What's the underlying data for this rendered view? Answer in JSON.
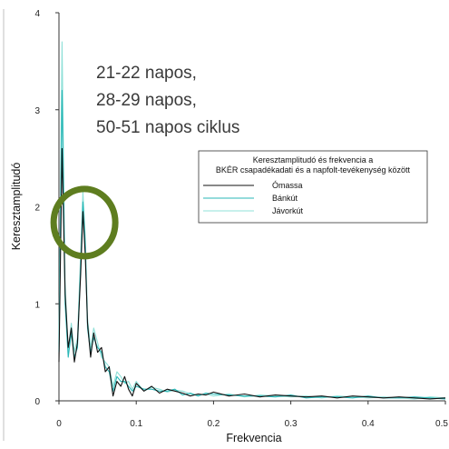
{
  "chart_data": {
    "type": "line",
    "xlabel": "Frekvencia",
    "ylabel": "Keresztamplitudó",
    "xlim": [
      0,
      0.5
    ],
    "ylim": [
      0,
      4
    ],
    "x_ticks": [
      "0",
      "0.1",
      "0.2",
      "0.3",
      "0.4",
      "0.5"
    ],
    "x_tick_values": [
      0,
      0.1,
      0.2,
      0.3,
      0.4,
      0.5
    ],
    "y_ticks": [
      "0",
      "1",
      "2",
      "3",
      "4"
    ],
    "y_tick_values": [
      0,
      1,
      2,
      3,
      4
    ],
    "annotation": [
      "21-22 napos,",
      "28-29 napos,",
      "50-51 napos ciklus"
    ],
    "highlight": {
      "x": 0.033,
      "y": 1.95,
      "color": "#5e7d1f"
    },
    "legend": {
      "title": [
        "Keresztamplitudó és frekvencia a",
        "BKÉR csapadékadati és a napfolt-tevékenység között"
      ],
      "placement": "right"
    },
    "series": [
      {
        "name": "Ómassa",
        "color": "#111111",
        "x": [
          0,
          0.004,
          0.008,
          0.012,
          0.016,
          0.02,
          0.024,
          0.028,
          0.031,
          0.034,
          0.037,
          0.041,
          0.045,
          0.05,
          0.055,
          0.06,
          0.065,
          0.07,
          0.075,
          0.08,
          0.085,
          0.09,
          0.095,
          0.1,
          0.11,
          0.12,
          0.13,
          0.14,
          0.15,
          0.16,
          0.17,
          0.18,
          0.19,
          0.2,
          0.22,
          0.24,
          0.26,
          0.28,
          0.3,
          0.32,
          0.34,
          0.36,
          0.38,
          0.4,
          0.42,
          0.44,
          0.46,
          0.48,
          0.5
        ],
        "values": [
          0.4,
          2.6,
          1.1,
          0.55,
          0.75,
          0.4,
          0.6,
          1.3,
          1.95,
          1.5,
          0.8,
          0.45,
          0.7,
          0.5,
          0.55,
          0.3,
          0.35,
          0.05,
          0.2,
          0.15,
          0.25,
          0.12,
          0.05,
          0.18,
          0.1,
          0.15,
          0.08,
          0.12,
          0.1,
          0.08,
          0.05,
          0.07,
          0.06,
          0.09,
          0.05,
          0.07,
          0.04,
          0.06,
          0.05,
          0.04,
          0.05,
          0.03,
          0.05,
          0.04,
          0.03,
          0.04,
          0.03,
          0.02,
          0.03
        ]
      },
      {
        "name": "Bánkút",
        "color": "#2ab7b7",
        "x": [
          0,
          0.004,
          0.008,
          0.012,
          0.016,
          0.02,
          0.024,
          0.028,
          0.031,
          0.034,
          0.037,
          0.041,
          0.045,
          0.05,
          0.055,
          0.06,
          0.065,
          0.07,
          0.075,
          0.08,
          0.085,
          0.09,
          0.095,
          0.1,
          0.11,
          0.12,
          0.13,
          0.14,
          0.15,
          0.16,
          0.17,
          0.18,
          0.19,
          0.2,
          0.22,
          0.24,
          0.26,
          0.28,
          0.3,
          0.32,
          0.34,
          0.36,
          0.38,
          0.4,
          0.42,
          0.44,
          0.46,
          0.48,
          0.5
        ],
        "values": [
          0.5,
          3.2,
          1.0,
          0.45,
          0.7,
          0.45,
          0.55,
          1.4,
          2.05,
          1.6,
          0.75,
          0.5,
          0.65,
          0.55,
          0.5,
          0.35,
          0.3,
          0.1,
          0.25,
          0.2,
          0.2,
          0.15,
          0.1,
          0.15,
          0.12,
          0.12,
          0.1,
          0.1,
          0.12,
          0.06,
          0.08,
          0.05,
          0.08,
          0.07,
          0.06,
          0.05,
          0.05,
          0.04,
          0.06,
          0.03,
          0.04,
          0.04,
          0.03,
          0.05,
          0.03,
          0.03,
          0.04,
          0.03,
          0.02
        ]
      },
      {
        "name": "Jávorkút",
        "color": "#8fe0d8",
        "x": [
          0,
          0.004,
          0.008,
          0.012,
          0.016,
          0.02,
          0.024,
          0.028,
          0.031,
          0.034,
          0.037,
          0.041,
          0.045,
          0.05,
          0.055,
          0.06,
          0.065,
          0.07,
          0.075,
          0.08,
          0.085,
          0.09,
          0.095,
          0.1,
          0.11,
          0.12,
          0.13,
          0.14,
          0.15,
          0.16,
          0.17,
          0.18,
          0.19,
          0.2,
          0.22,
          0.24,
          0.26,
          0.28,
          0.3,
          0.32,
          0.34,
          0.36,
          0.38,
          0.4,
          0.42,
          0.44,
          0.46,
          0.48,
          0.5
        ],
        "values": [
          0.6,
          3.7,
          1.2,
          0.5,
          0.8,
          0.5,
          0.65,
          1.5,
          2.15,
          1.7,
          0.85,
          0.55,
          0.75,
          0.6,
          0.45,
          0.4,
          0.35,
          0.15,
          0.3,
          0.25,
          0.18,
          0.2,
          0.12,
          0.2,
          0.1,
          0.14,
          0.12,
          0.09,
          0.11,
          0.1,
          0.07,
          0.06,
          0.07,
          0.05,
          0.07,
          0.04,
          0.06,
          0.05,
          0.04,
          0.05,
          0.03,
          0.05,
          0.04,
          0.03,
          0.04,
          0.03,
          0.02,
          0.04,
          0.03
        ]
      }
    ]
  }
}
